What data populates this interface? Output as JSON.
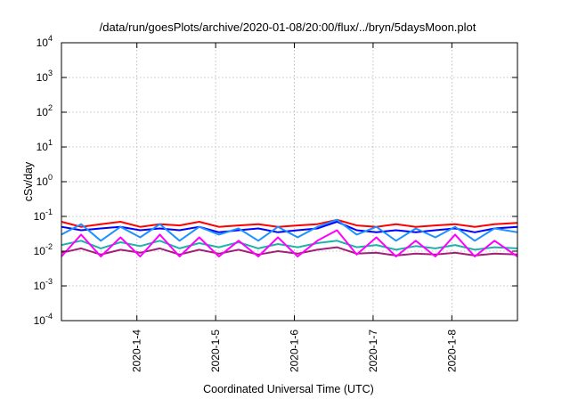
{
  "chart_data": {
    "type": "line",
    "title": "/data/run/goesPlots/archive/2020-01-08/20:00/flux/../bryn/5daysMoon.plot",
    "xlabel": "Coordinated Universal Time (UTC)",
    "ylabel": "cSv/day",
    "yscale": "log",
    "ylim": [
      0.0001,
      10000
    ],
    "xlim": [
      "2020-01-03T01:00",
      "2020-01-08T20:00"
    ],
    "y_ticks": [
      {
        "value": 0.0001,
        "base": "10",
        "exp": "-4"
      },
      {
        "value": 0.001,
        "base": "10",
        "exp": "-3"
      },
      {
        "value": 0.01,
        "base": "10",
        "exp": "-2"
      },
      {
        "value": 0.1,
        "base": "10",
        "exp": "-1"
      },
      {
        "value": 1,
        "base": "10",
        "exp": "0"
      },
      {
        "value": 10,
        "base": "10",
        "exp": "1"
      },
      {
        "value": 100,
        "base": "10",
        "exp": "2"
      },
      {
        "value": 1000,
        "base": "10",
        "exp": "3"
      },
      {
        "value": 10000,
        "base": "10",
        "exp": "4"
      }
    ],
    "x_ticks": [
      {
        "value": "2020-01-04T00:00",
        "label": "2020-1-4"
      },
      {
        "value": "2020-01-05T00:00",
        "label": "2020-1-5"
      },
      {
        "value": "2020-01-06T00:00",
        "label": "2020-1-6"
      },
      {
        "value": "2020-01-07T00:00",
        "label": "2020-1-7"
      },
      {
        "value": "2020-01-08T00:00",
        "label": "2020-1-8"
      }
    ],
    "grid": true,
    "series": [
      {
        "color": "#ff0000",
        "x": [
          "2020-01-03T01:00",
          "2020-01-03T07:00",
          "2020-01-03T13:00",
          "2020-01-03T19:00",
          "2020-01-04T01:00",
          "2020-01-04T07:00",
          "2020-01-04T13:00",
          "2020-01-04T19:00",
          "2020-01-05T01:00",
          "2020-01-05T07:00",
          "2020-01-05T13:00",
          "2020-01-05T19:00",
          "2020-01-06T01:00",
          "2020-01-06T07:00",
          "2020-01-06T13:00",
          "2020-01-06T19:00",
          "2020-01-07T01:00",
          "2020-01-07T07:00",
          "2020-01-07T13:00",
          "2020-01-07T19:00",
          "2020-01-08T01:00",
          "2020-01-08T07:00",
          "2020-01-08T13:00",
          "2020-01-08T20:00"
        ],
        "y": [
          0.07,
          0.05,
          0.06,
          0.07,
          0.05,
          0.06,
          0.055,
          0.07,
          0.05,
          0.055,
          0.06,
          0.05,
          0.055,
          0.06,
          0.08,
          0.055,
          0.05,
          0.06,
          0.05,
          0.055,
          0.06,
          0.05,
          0.06,
          0.065
        ]
      },
      {
        "color": "#0000ff",
        "x": [
          "2020-01-03T01:00",
          "2020-01-03T07:00",
          "2020-01-03T13:00",
          "2020-01-03T19:00",
          "2020-01-04T01:00",
          "2020-01-04T07:00",
          "2020-01-04T13:00",
          "2020-01-04T19:00",
          "2020-01-05T01:00",
          "2020-01-05T07:00",
          "2020-01-05T13:00",
          "2020-01-05T19:00",
          "2020-01-06T01:00",
          "2020-01-06T07:00",
          "2020-01-06T13:00",
          "2020-01-06T19:00",
          "2020-01-07T01:00",
          "2020-01-07T07:00",
          "2020-01-07T13:00",
          "2020-01-07T19:00",
          "2020-01-08T01:00",
          "2020-01-08T07:00",
          "2020-01-08T13:00",
          "2020-01-08T20:00"
        ],
        "y": [
          0.05,
          0.04,
          0.045,
          0.05,
          0.04,
          0.045,
          0.04,
          0.05,
          0.035,
          0.04,
          0.045,
          0.035,
          0.04,
          0.045,
          0.07,
          0.04,
          0.035,
          0.04,
          0.035,
          0.04,
          0.045,
          0.035,
          0.045,
          0.05
        ]
      },
      {
        "color": "#1e90ff",
        "x": [
          "2020-01-03T01:00",
          "2020-01-03T07:00",
          "2020-01-03T13:00",
          "2020-01-03T19:00",
          "2020-01-04T01:00",
          "2020-01-04T07:00",
          "2020-01-04T13:00",
          "2020-01-04T19:00",
          "2020-01-05T01:00",
          "2020-01-05T07:00",
          "2020-01-05T13:00",
          "2020-01-05T19:00",
          "2020-01-06T01:00",
          "2020-01-06T07:00",
          "2020-01-06T13:00",
          "2020-01-06T19:00",
          "2020-01-07T01:00",
          "2020-01-07T07:00",
          "2020-01-07T13:00",
          "2020-01-07T19:00",
          "2020-01-08T01:00",
          "2020-01-08T07:00",
          "2020-01-08T13:00",
          "2020-01-08T20:00"
        ],
        "y": [
          0.03,
          0.06,
          0.02,
          0.05,
          0.025,
          0.06,
          0.02,
          0.05,
          0.03,
          0.045,
          0.02,
          0.05,
          0.025,
          0.05,
          0.08,
          0.03,
          0.05,
          0.02,
          0.045,
          0.025,
          0.05,
          0.02,
          0.045,
          0.035
        ]
      },
      {
        "color": "#20b2aa",
        "x": [
          "2020-01-03T01:00",
          "2020-01-03T07:00",
          "2020-01-03T13:00",
          "2020-01-03T19:00",
          "2020-01-04T01:00",
          "2020-01-04T07:00",
          "2020-01-04T13:00",
          "2020-01-04T19:00",
          "2020-01-05T01:00",
          "2020-01-05T07:00",
          "2020-01-05T13:00",
          "2020-01-05T19:00",
          "2020-01-06T01:00",
          "2020-01-06T07:00",
          "2020-01-06T13:00",
          "2020-01-06T19:00",
          "2020-01-07T01:00",
          "2020-01-07T07:00",
          "2020-01-07T13:00",
          "2020-01-07T19:00",
          "2020-01-08T01:00",
          "2020-01-08T07:00",
          "2020-01-08T13:00",
          "2020-01-08T20:00"
        ],
        "y": [
          0.015,
          0.02,
          0.012,
          0.018,
          0.014,
          0.02,
          0.012,
          0.017,
          0.013,
          0.018,
          0.012,
          0.016,
          0.013,
          0.017,
          0.02,
          0.013,
          0.015,
          0.011,
          0.014,
          0.012,
          0.015,
          0.011,
          0.013,
          0.012
        ]
      },
      {
        "color": "#a0207a",
        "x": [
          "2020-01-03T01:00",
          "2020-01-03T07:00",
          "2020-01-03T13:00",
          "2020-01-03T19:00",
          "2020-01-04T01:00",
          "2020-01-04T07:00",
          "2020-01-04T13:00",
          "2020-01-04T19:00",
          "2020-01-05T01:00",
          "2020-01-05T07:00",
          "2020-01-05T13:00",
          "2020-01-05T19:00",
          "2020-01-06T01:00",
          "2020-01-06T07:00",
          "2020-01-06T13:00",
          "2020-01-06T19:00",
          "2020-01-07T01:00",
          "2020-01-07T07:00",
          "2020-01-07T13:00",
          "2020-01-07T19:00",
          "2020-01-08T01:00",
          "2020-01-08T07:00",
          "2020-01-08T13:00",
          "2020-01-08T20:00"
        ],
        "y": [
          0.009,
          0.012,
          0.008,
          0.011,
          0.009,
          0.012,
          0.008,
          0.011,
          0.0085,
          0.011,
          0.008,
          0.01,
          0.0085,
          0.011,
          0.013,
          0.0085,
          0.009,
          0.0075,
          0.0085,
          0.008,
          0.009,
          0.0075,
          0.0085,
          0.008
        ]
      },
      {
        "color": "#ff00ff",
        "x": [
          "2020-01-03T01:00",
          "2020-01-03T07:00",
          "2020-01-03T13:00",
          "2020-01-03T19:00",
          "2020-01-04T01:00",
          "2020-01-04T07:00",
          "2020-01-04T13:00",
          "2020-01-04T19:00",
          "2020-01-05T01:00",
          "2020-01-05T07:00",
          "2020-01-05T13:00",
          "2020-01-05T19:00",
          "2020-01-06T01:00",
          "2020-01-06T07:00",
          "2020-01-06T13:00",
          "2020-01-06T19:00",
          "2020-01-07T01:00",
          "2020-01-07T07:00",
          "2020-01-07T13:00",
          "2020-01-07T19:00",
          "2020-01-08T01:00",
          "2020-01-08T07:00",
          "2020-01-08T13:00",
          "2020-01-08T20:00"
        ],
        "y": [
          0.007,
          0.03,
          0.007,
          0.025,
          0.007,
          0.03,
          0.007,
          0.025,
          0.007,
          0.02,
          0.007,
          0.025,
          0.007,
          0.02,
          0.04,
          0.008,
          0.025,
          0.007,
          0.02,
          0.007,
          0.03,
          0.007,
          0.02,
          0.007
        ]
      }
    ]
  }
}
